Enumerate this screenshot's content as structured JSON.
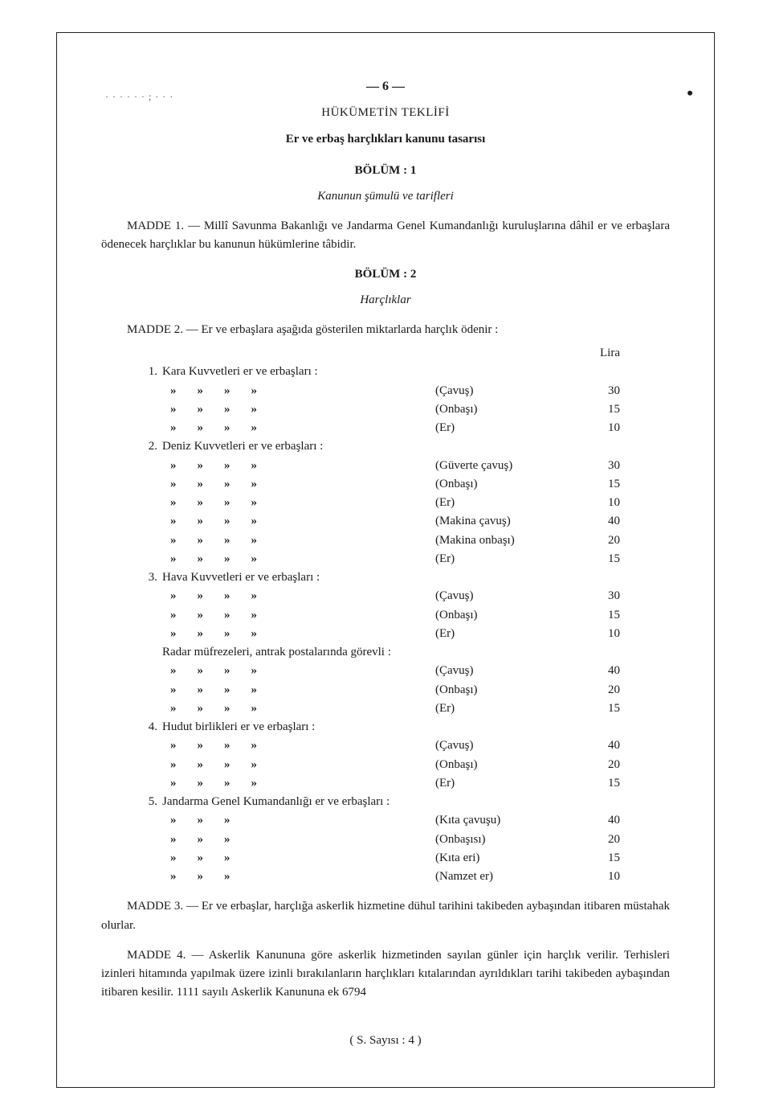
{
  "page_number_top": "— 6 —",
  "doc_title": "HÜKÜMETİN TEKLİFİ",
  "subtitle": "Er ve erbaş harçlıkları kanunu tasarısı",
  "artifact_text": "·  · · ·  ·  ·  ;  ·  ·  ·",
  "dot_right": "•",
  "sections": {
    "b1": {
      "header": "BÖLÜM : 1",
      "subheader": "Kanunun şümulü ve tarifleri"
    },
    "b2": {
      "header": "BÖLÜM : 2",
      "subheader": "Harçlıklar"
    }
  },
  "madde1": "MADDE 1. — Millî Savunma Bakanlığı ve Jandarma Genel Kumandanlığı kuruluşlarına dâhil er ve erbaşlara ödenecek harçlıklar bu kanunun hükümlerine tâbidir.",
  "madde2_intro": "MADDE 2. — Er ve erbaşlara aşağıda gösterilen miktarlarda harçlık ödenir :",
  "lira_label": "Lira",
  "groups": [
    {
      "num": "1.",
      "label": "Kara Kuvvetleri er ve erbaşları :",
      "quote_cols": 4,
      "rows": [
        {
          "rank": "(Çavuş)",
          "amount": "30"
        },
        {
          "rank": "(Onbaşı)",
          "amount": "15"
        },
        {
          "rank": "(Er)",
          "amount": "10"
        }
      ]
    },
    {
      "num": "2.",
      "label": "Deniz Kuvvetleri er ve erbaşları :",
      "quote_cols": 4,
      "rows": [
        {
          "rank": "(Güverte çavuş)",
          "amount": "30"
        },
        {
          "rank": "(Onbaşı)",
          "amount": "15"
        },
        {
          "rank": "(Er)",
          "amount": "10"
        },
        {
          "rank": "(Makina çavuş)",
          "amount": "40"
        },
        {
          "rank": "(Makina onbaşı)",
          "amount": "20"
        },
        {
          "rank": "(Er)",
          "amount": "15"
        }
      ]
    },
    {
      "num": "3.",
      "label": "Hava Kuvvetleri er ve erbaşları :",
      "quote_cols": 4,
      "rows": [
        {
          "rank": "(Çavuş)",
          "amount": "30"
        },
        {
          "rank": "(Onbaşı)",
          "amount": "15"
        },
        {
          "rank": "(Er)",
          "amount": "10"
        }
      ]
    },
    {
      "num": "",
      "label": "Radar müfrezeleri, antrak postalarında görevli :",
      "quote_cols": 4,
      "rows": [
        {
          "rank": "(Çavuş)",
          "amount": "40"
        },
        {
          "rank": "(Onbaşı)",
          "amount": "20"
        },
        {
          "rank": "(Er)",
          "amount": "15"
        }
      ]
    },
    {
      "num": "4.",
      "label": "Hudut birlikleri er ve erbaşları :",
      "quote_cols": 4,
      "rows": [
        {
          "rank": "(Çavuş)",
          "amount": "40"
        },
        {
          "rank": "(Onbaşı)",
          "amount": "20"
        },
        {
          "rank": "(Er)",
          "amount": "15"
        }
      ]
    },
    {
      "num": "5.",
      "label": "Jandarma Genel Kumandanlığı er ve erbaşları :",
      "quote_cols": 3,
      "rows": [
        {
          "rank": "(Kıta çavuşu)",
          "amount": "40"
        },
        {
          "rank": "(Onbaşısı)",
          "amount": "20"
        },
        {
          "rank": "(Kıta eri)",
          "amount": "15"
        },
        {
          "rank": "(Namzet er)",
          "amount": "10"
        }
      ]
    }
  ],
  "madde3": "MADDE 3. — Er ve erbaşlar, harçlığa askerlik hizmetine dühul tarihini takibeden aybaşından itibaren müstahak olurlar.",
  "madde4": "MADDE 4. — Askerlik Kanununa göre askerlik hizmetinden sayılan günler için harçlık verilir. Terhisleri izinleri hitamında yapılmak üzere izinli bırakılanların harçlıkları kıtalarından ayrıldıkları tarihi takibeden aybaşından itibaren kesilir. 1111 sayılı Askerlik Kanununa ek 6794",
  "footer": "( S. Sayısı : 4 )"
}
